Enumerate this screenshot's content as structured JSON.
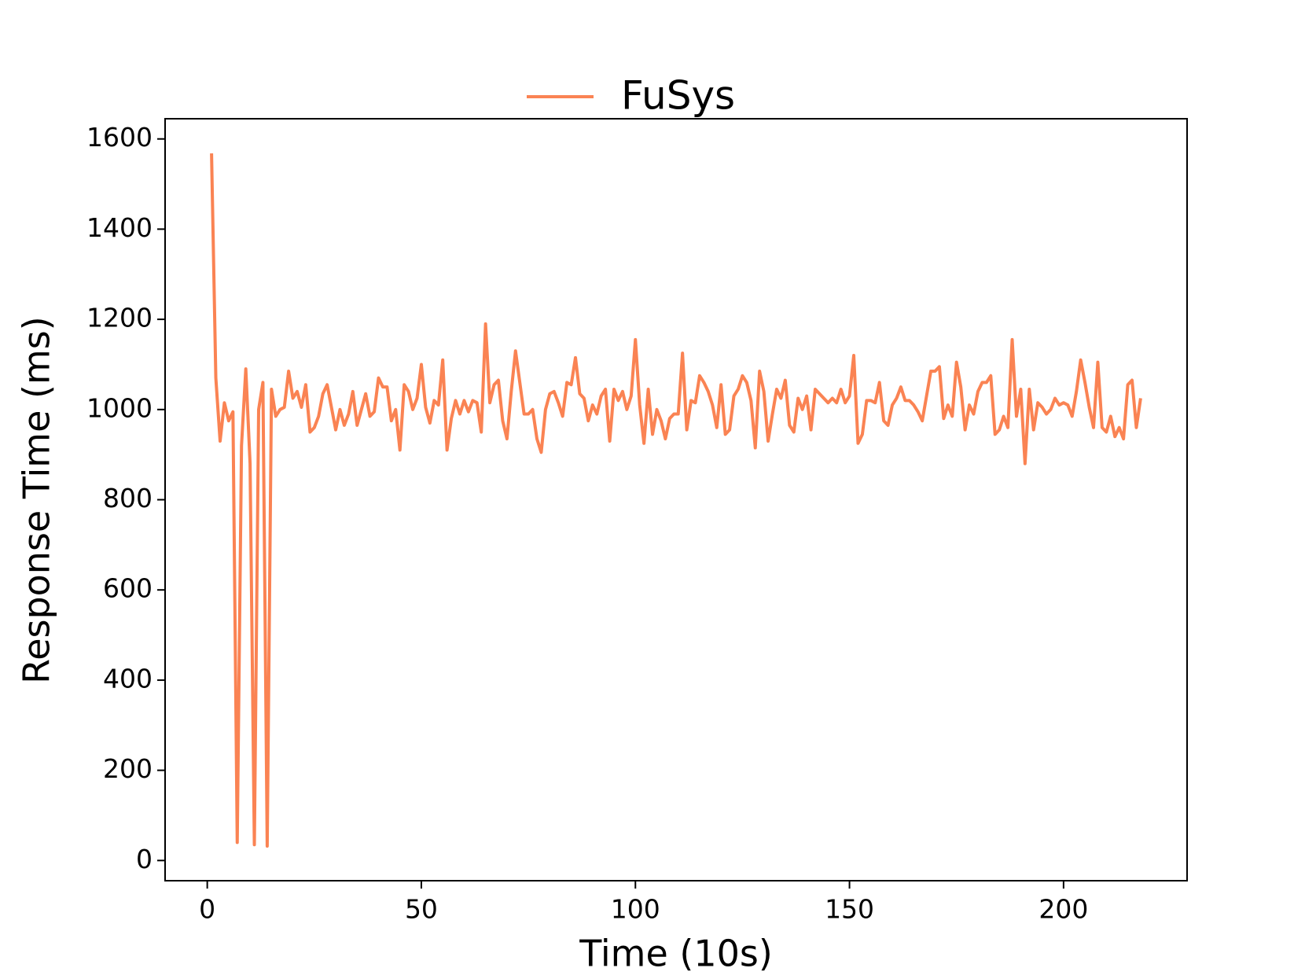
{
  "chart_data": {
    "type": "line",
    "xlabel": "Time (10s)",
    "ylabel": "Response Time (ms)",
    "x": [
      1,
      2,
      3,
      4,
      5,
      6,
      7,
      8,
      9,
      10,
      11,
      12,
      13,
      14,
      15,
      16,
      17,
      18,
      19,
      20,
      21,
      22,
      23,
      24,
      25,
      26,
      27,
      28,
      29,
      30,
      31,
      32,
      33,
      34,
      35,
      36,
      37,
      38,
      39,
      40,
      41,
      42,
      43,
      44,
      45,
      46,
      47,
      48,
      49,
      50,
      51,
      52,
      53,
      54,
      55,
      56,
      57,
      58,
      59,
      60,
      61,
      62,
      63,
      64,
      65,
      66,
      67,
      68,
      69,
      70,
      71,
      72,
      73,
      74,
      75,
      76,
      77,
      78,
      79,
      80,
      81,
      82,
      83,
      84,
      85,
      86,
      87,
      88,
      89,
      90,
      91,
      92,
      93,
      94,
      95,
      96,
      97,
      98,
      99,
      100,
      101,
      102,
      103,
      104,
      105,
      106,
      107,
      108,
      109,
      110,
      111,
      112,
      113,
      114,
      115,
      116,
      117,
      118,
      119,
      120,
      121,
      122,
      123,
      124,
      125,
      126,
      127,
      128,
      129,
      130,
      131,
      132,
      133,
      134,
      135,
      136,
      137,
      138,
      139,
      140,
      141,
      142,
      143,
      144,
      145,
      146,
      147,
      148,
      149,
      150,
      151,
      152,
      153,
      154,
      155,
      156,
      157,
      158,
      159,
      160,
      161,
      162,
      163,
      164,
      165,
      166,
      167,
      168,
      169,
      170,
      171,
      172,
      173,
      174,
      175,
      176,
      177,
      178,
      179,
      180,
      181,
      182,
      183,
      184,
      185,
      186,
      187,
      188,
      189,
      190,
      191,
      192,
      193,
      194,
      195,
      196,
      197,
      198,
      199,
      200,
      201,
      202,
      203,
      204,
      205,
      206,
      207,
      208,
      209,
      210,
      211,
      212,
      213,
      214,
      215,
      216,
      217,
      218
    ],
    "series": [
      {
        "name": "FuSys",
        "color": "#fa8353",
        "values": [
          1568,
          1070,
          930,
          1015,
          975,
          995,
          40,
          920,
          1090,
          880,
          35,
          1000,
          1060,
          32,
          1045,
          985,
          1000,
          1005,
          1085,
          1025,
          1040,
          1005,
          1055,
          950,
          960,
          985,
          1035,
          1055,
          1005,
          955,
          1000,
          965,
          990,
          1040,
          965,
          1000,
          1035,
          985,
          995,
          1070,
          1050,
          1050,
          975,
          1000,
          910,
          1055,
          1040,
          1000,
          1025,
          1100,
          1005,
          970,
          1020,
          1010,
          1110,
          910,
          980,
          1020,
          990,
          1020,
          995,
          1020,
          1015,
          950,
          1190,
          1015,
          1055,
          1065,
          975,
          935,
          1040,
          1130,
          1060,
          990,
          990,
          1000,
          935,
          905,
          1000,
          1035,
          1040,
          1015,
          985,
          1060,
          1055,
          1115,
          1035,
          1025,
          975,
          1010,
          990,
          1030,
          1045,
          930,
          1045,
          1020,
          1040,
          1000,
          1030,
          1155,
          1010,
          925,
          1045,
          945,
          1000,
          975,
          935,
          980,
          990,
          990,
          1125,
          955,
          1020,
          1015,
          1075,
          1060,
          1040,
          1010,
          960,
          1055,
          945,
          955,
          1030,
          1045,
          1075,
          1060,
          1020,
          915,
          1085,
          1040,
          930,
          990,
          1045,
          1025,
          1065,
          965,
          950,
          1025,
          1000,
          1030,
          955,
          1045,
          1035,
          1025,
          1015,
          1025,
          1015,
          1045,
          1015,
          1030,
          1120,
          925,
          945,
          1020,
          1020,
          1015,
          1060,
          975,
          965,
          1010,
          1025,
          1050,
          1020,
          1020,
          1010,
          995,
          975,
          1030,
          1085,
          1085,
          1095,
          980,
          1010,
          985,
          1105,
          1050,
          955,
          1010,
          990,
          1040,
          1060,
          1060,
          1075,
          945,
          955,
          985,
          960,
          1155,
          985,
          1045,
          880,
          1045,
          955,
          1015,
          1005,
          990,
          1000,
          1025,
          1010,
          1015,
          1010,
          985,
          1040,
          1110,
          1060,
          1005,
          960,
          1105,
          960,
          950,
          985,
          940,
          960,
          935,
          1055,
          1065,
          960,
          1025
        ]
      }
    ],
    "xlim": [
      -9.85,
      228.85
    ],
    "ylim": [
      -44.8,
      1644.8
    ],
    "xticks": [
      0,
      50,
      100,
      150,
      200
    ],
    "yticks": [
      0,
      200,
      400,
      600,
      800,
      1000,
      1200,
      1400,
      1600
    ],
    "grid": false,
    "legend": "upper center"
  }
}
